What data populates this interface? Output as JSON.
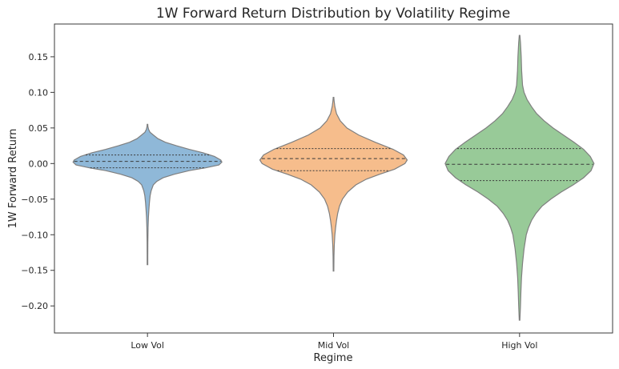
{
  "chart_data": {
    "type": "violin",
    "title": "1W Forward Return Distribution by Volatility Regime",
    "xlabel": "Regime",
    "ylabel": "1W Forward Return",
    "ylim": [
      -0.238,
      0.196
    ],
    "yticks": [
      -0.2,
      -0.15,
      -0.1,
      -0.05,
      0.0,
      0.05,
      0.1,
      0.15
    ],
    "ytick_labels": [
      "−0.20",
      "−0.15",
      "−0.10",
      "−0.05",
      "0.00",
      "0.05",
      "0.10",
      "0.15"
    ],
    "categories": [
      "Low Vol",
      "Mid Vol",
      "High Vol"
    ],
    "series": [
      {
        "name": "Low Vol",
        "color": "#8fb8d8",
        "min": -0.142,
        "max": 0.055,
        "q1": -0.006,
        "median": 0.003,
        "q3": 0.012,
        "density": [
          [
            0.055,
            0.0
          ],
          [
            0.052,
            0.006
          ],
          [
            0.048,
            0.015
          ],
          [
            0.044,
            0.034
          ],
          [
            0.04,
            0.08
          ],
          [
            0.035,
            0.14
          ],
          [
            0.03,
            0.24
          ],
          [
            0.025,
            0.39
          ],
          [
            0.02,
            0.56
          ],
          [
            0.015,
            0.75
          ],
          [
            0.01,
            0.9
          ],
          [
            0.005,
            0.985
          ],
          [
            0.002,
            1.0
          ],
          [
            -0.002,
            0.96
          ],
          [
            -0.006,
            0.78
          ],
          [
            -0.01,
            0.56
          ],
          [
            -0.015,
            0.36
          ],
          [
            -0.02,
            0.21
          ],
          [
            -0.025,
            0.125
          ],
          [
            -0.03,
            0.078
          ],
          [
            -0.038,
            0.05
          ],
          [
            -0.045,
            0.036
          ],
          [
            -0.055,
            0.026
          ],
          [
            -0.065,
            0.019
          ],
          [
            -0.075,
            0.013
          ],
          [
            -0.09,
            0.008
          ],
          [
            -0.11,
            0.005
          ],
          [
            -0.13,
            0.003
          ],
          [
            -0.142,
            0.0
          ]
        ]
      },
      {
        "name": "Mid Vol",
        "color": "#f6bd8c",
        "min": -0.151,
        "max": 0.093,
        "q1": -0.01,
        "median": 0.007,
        "q3": 0.021,
        "density": [
          [
            0.093,
            0.0
          ],
          [
            0.088,
            0.008
          ],
          [
            0.08,
            0.018
          ],
          [
            0.07,
            0.04
          ],
          [
            0.06,
            0.09
          ],
          [
            0.05,
            0.18
          ],
          [
            0.04,
            0.34
          ],
          [
            0.03,
            0.56
          ],
          [
            0.02,
            0.8
          ],
          [
            0.012,
            0.94
          ],
          [
            0.005,
            0.99
          ],
          [
            0.0,
            0.96
          ],
          [
            -0.008,
            0.82
          ],
          [
            -0.015,
            0.62
          ],
          [
            -0.022,
            0.44
          ],
          [
            -0.03,
            0.3
          ],
          [
            -0.04,
            0.19
          ],
          [
            -0.05,
            0.12
          ],
          [
            -0.06,
            0.08
          ],
          [
            -0.07,
            0.056
          ],
          [
            -0.08,
            0.04
          ],
          [
            -0.09,
            0.028
          ],
          [
            -0.1,
            0.018
          ],
          [
            -0.115,
            0.01
          ],
          [
            -0.13,
            0.006
          ],
          [
            -0.151,
            0.0
          ]
        ]
      },
      {
        "name": "High Vol",
        "color": "#98ca98",
        "min": -0.22,
        "max": 0.18,
        "q1": -0.024,
        "median": -0.001,
        "q3": 0.021,
        "density": [
          [
            0.18,
            0.0
          ],
          [
            0.17,
            0.012
          ],
          [
            0.15,
            0.022
          ],
          [
            0.13,
            0.028
          ],
          [
            0.11,
            0.04
          ],
          [
            0.1,
            0.06
          ],
          [
            0.09,
            0.1
          ],
          [
            0.08,
            0.16
          ],
          [
            0.07,
            0.23
          ],
          [
            0.06,
            0.33
          ],
          [
            0.05,
            0.45
          ],
          [
            0.04,
            0.59
          ],
          [
            0.03,
            0.73
          ],
          [
            0.02,
            0.86
          ],
          [
            0.01,
            0.95
          ],
          [
            0.0,
            1.0
          ],
          [
            -0.01,
            0.96
          ],
          [
            -0.02,
            0.86
          ],
          [
            -0.03,
            0.72
          ],
          [
            -0.04,
            0.56
          ],
          [
            -0.05,
            0.42
          ],
          [
            -0.06,
            0.3
          ],
          [
            -0.07,
            0.22
          ],
          [
            -0.08,
            0.16
          ],
          [
            -0.09,
            0.12
          ],
          [
            -0.1,
            0.09
          ],
          [
            -0.12,
            0.06
          ],
          [
            -0.14,
            0.04
          ],
          [
            -0.16,
            0.026
          ],
          [
            -0.18,
            0.018
          ],
          [
            -0.2,
            0.012
          ],
          [
            -0.22,
            0.0
          ]
        ]
      }
    ]
  }
}
